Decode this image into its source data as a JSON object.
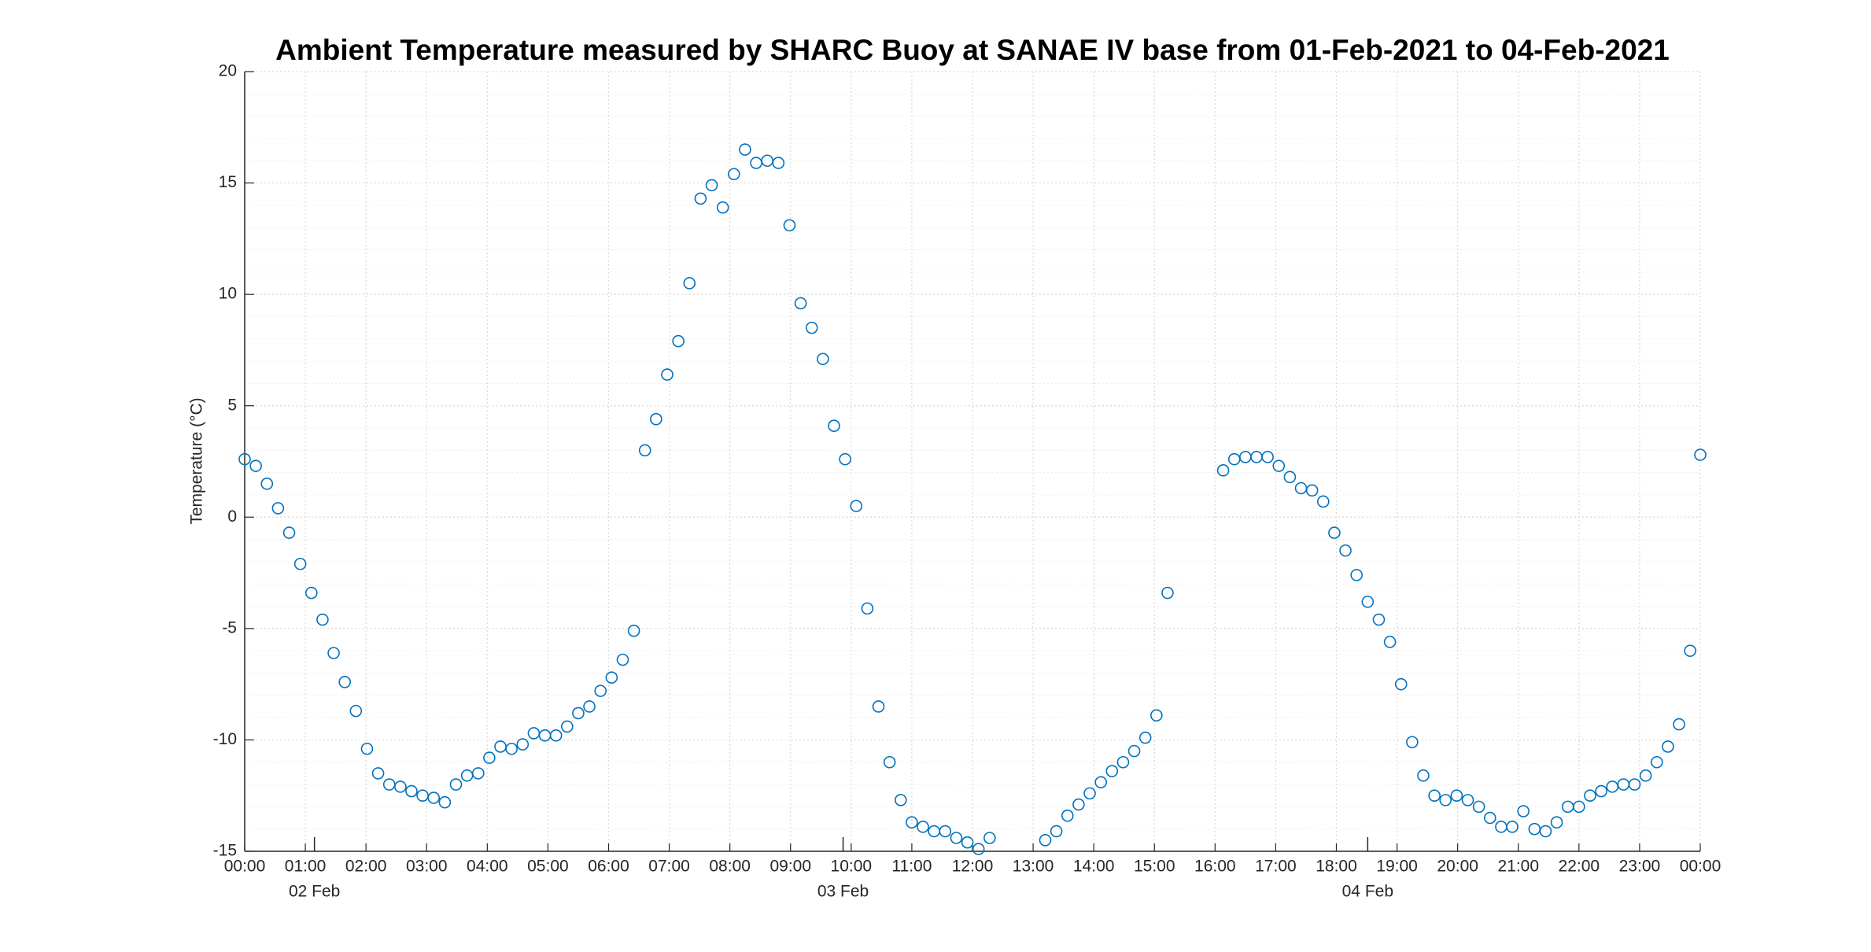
{
  "chart_data": {
    "type": "scatter",
    "title": "Ambient Temperature measured by SHARC Buoy at SANAE IV base from 01-Feb-2021 to 04-Feb-2021",
    "y_label": "Temperature (°C)",
    "color": "#0072bd",
    "grid": true,
    "minor_grid": true,
    "xlim": [
      0,
      1440
    ],
    "ylim": [
      -15,
      20
    ],
    "yticks": [
      -15,
      -10,
      -5,
      0,
      5,
      10,
      15,
      20
    ],
    "xticks": [
      {
        "value": 0,
        "label": "00:00"
      },
      {
        "value": 60,
        "label": "01:00"
      },
      {
        "value": 120,
        "label": "02:00"
      },
      {
        "value": 180,
        "label": "03:00"
      },
      {
        "value": 240,
        "label": "04:00"
      },
      {
        "value": 300,
        "label": "05:00"
      },
      {
        "value": 360,
        "label": "06:00"
      },
      {
        "value": 420,
        "label": "07:00"
      },
      {
        "value": 480,
        "label": "08:00"
      },
      {
        "value": 540,
        "label": "09:00"
      },
      {
        "value": 600,
        "label": "10:00"
      },
      {
        "value": 660,
        "label": "11:00"
      },
      {
        "value": 720,
        "label": "12:00"
      },
      {
        "value": 780,
        "label": "13:00"
      },
      {
        "value": 840,
        "label": "14:00"
      },
      {
        "value": 900,
        "label": "15:00"
      },
      {
        "value": 960,
        "label": "16:00"
      },
      {
        "value": 1020,
        "label": "17:00"
      },
      {
        "value": 1080,
        "label": "18:00"
      },
      {
        "value": 1140,
        "label": "19:00"
      },
      {
        "value": 1200,
        "label": "20:00"
      },
      {
        "value": 1260,
        "label": "21:00"
      },
      {
        "value": 1320,
        "label": "22:00"
      },
      {
        "value": 1380,
        "label": "23:00"
      },
      {
        "value": 1440,
        "label": "00:00"
      }
    ],
    "date_ticks": [
      {
        "value": 69,
        "label": "02 Feb"
      },
      {
        "value": 592,
        "label": "03 Feb"
      },
      {
        "value": 1111,
        "label": "04 Feb"
      }
    ],
    "x": [
      0,
      11,
      22,
      33,
      44,
      55,
      66,
      77,
      88,
      99,
      110,
      121,
      132,
      143,
      154,
      165,
      176,
      187,
      198,
      209,
      220,
      231,
      242,
      253,
      264,
      275,
      286,
      297,
      308,
      319,
      330,
      341,
      352,
      363,
      374,
      385,
      396,
      407,
      418,
      429,
      440,
      451,
      462,
      473,
      484,
      495,
      506,
      517,
      528,
      539,
      550,
      561,
      572,
      583,
      594,
      605,
      616,
      627,
      638,
      649,
      660,
      671,
      682,
      693,
      704,
      715,
      726,
      737,
      792,
      803,
      814,
      825,
      836,
      847,
      858,
      869,
      880,
      891,
      902,
      913,
      968,
      979,
      990,
      1001,
      1012,
      1023,
      1034,
      1045,
      1056,
      1067,
      1078,
      1089,
      1100,
      1111,
      1122,
      1133,
      1144,
      1155,
      1166,
      1177,
      1188,
      1199,
      1210,
      1221,
      1232,
      1243,
      1254,
      1265,
      1276,
      1287,
      1298,
      1309,
      1320,
      1331,
      1342,
      1353,
      1364,
      1375,
      1386,
      1397,
      1408,
      1419,
      1430,
      1440
    ],
    "values": [
      2.6,
      2.3,
      1.5,
      0.4,
      -0.7,
      -2.1,
      -3.4,
      -4.6,
      -6.1,
      -7.4,
      -8.7,
      -10.4,
      -11.5,
      -12.0,
      -12.1,
      -12.3,
      -12.5,
      -12.6,
      -12.8,
      -12.0,
      -11.6,
      -11.5,
      -10.8,
      -10.3,
      -10.4,
      -10.2,
      -9.7,
      -9.8,
      -9.8,
      -9.4,
      -8.8,
      -8.5,
      -7.8,
      -7.2,
      -6.4,
      -5.1,
      3.0,
      4.4,
      6.4,
      7.9,
      10.5,
      14.3,
      14.9,
      13.9,
      15.4,
      16.5,
      15.9,
      16.0,
      15.9,
      13.1,
      9.6,
      8.5,
      7.1,
      4.1,
      2.6,
      0.5,
      -4.1,
      -8.5,
      -11.0,
      -12.7,
      -13.7,
      -13.9,
      -14.1,
      -14.1,
      -14.4,
      -14.6,
      -14.9,
      -14.4,
      -14.5,
      -14.1,
      -13.4,
      -12.9,
      -12.4,
      -11.9,
      -11.4,
      -11.0,
      -10.5,
      -9.9,
      -8.9,
      -3.4,
      2.1,
      2.6,
      2.7,
      2.7,
      2.7,
      2.3,
      1.8,
      1.3,
      1.2,
      0.7,
      -0.7,
      -1.5,
      -2.6,
      -3.8,
      -4.6,
      -5.6,
      -7.5,
      -10.1,
      -11.6,
      -12.5,
      -12.7,
      -12.5,
      -12.7,
      -13.0,
      -13.5,
      -13.9,
      -13.9,
      -13.2,
      -14.0,
      -14.1,
      -13.7,
      -13.0,
      -13.0,
      -12.5,
      -12.3,
      -12.1,
      -12.0,
      -12.0,
      -11.6,
      -11.0,
      -10.3,
      -9.3,
      -6.0,
      2.8
    ]
  }
}
